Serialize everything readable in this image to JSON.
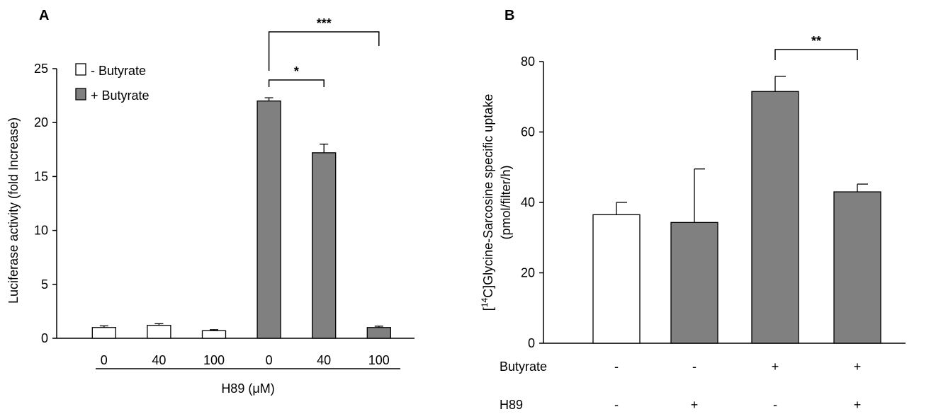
{
  "chart_data": [
    {
      "panel": "A",
      "type": "bar",
      "ylabel": "Luciferase activity (fold Increase)",
      "ylim": [
        0,
        25
      ],
      "yticks": [
        0,
        5,
        10,
        15,
        20,
        25
      ],
      "xgroup_label": "H89 (μM)",
      "categories": [
        "0",
        "40",
        "100",
        "0",
        "40",
        "100"
      ],
      "series": [
        {
          "name": "- Butyrate",
          "color": "#ffffff",
          "points": [
            {
              "index": 0,
              "value": 1.0,
              "error": 0.15
            },
            {
              "index": 1,
              "value": 1.2,
              "error": 0.15
            },
            {
              "index": 2,
              "value": 0.7,
              "error": 0.1
            }
          ]
        },
        {
          "name": "+ Butyrate",
          "color": "#808080",
          "points": [
            {
              "index": 3,
              "value": 22.0,
              "error": 0.3
            },
            {
              "index": 4,
              "value": 17.2,
              "error": 0.8
            },
            {
              "index": 5,
              "value": 1.0,
              "error": 0.12
            }
          ]
        }
      ],
      "significance": [
        {
          "from": 3,
          "to": 4,
          "label": "*"
        },
        {
          "from": 3,
          "to": 5,
          "label": "***"
        }
      ],
      "legend_position": "top-left",
      "grid": false
    },
    {
      "panel": "B",
      "type": "bar",
      "ylabel_line1": "[14C]Glycine-Sarcosine specific uptake",
      "ylabel_line1_parts": {
        "open": "[",
        "sup": "14",
        "rest": "C]Glycine-Sarcosine specific uptake"
      },
      "ylabel_line2": "(pmol/filter/h)",
      "ylim": [
        0,
        80
      ],
      "yticks": [
        0,
        20,
        40,
        60,
        80
      ],
      "bars": [
        {
          "value": 36.5,
          "error": 3.5,
          "color": "#ffffff"
        },
        {
          "value": 34.3,
          "error": 15.2,
          "color": "#808080"
        },
        {
          "value": 71.5,
          "error": 4.3,
          "color": "#808080"
        },
        {
          "value": 43.0,
          "error": 2.2,
          "color": "#808080"
        }
      ],
      "conditions": [
        {
          "label": "Butyrate",
          "values": [
            "-",
            "-",
            "+",
            "+"
          ]
        },
        {
          "label": "H89",
          "values": [
            "-",
            "+",
            "-",
            "+"
          ]
        }
      ],
      "significance": [
        {
          "from": 2,
          "to": 3,
          "label": "**"
        }
      ],
      "grid": false
    }
  ]
}
